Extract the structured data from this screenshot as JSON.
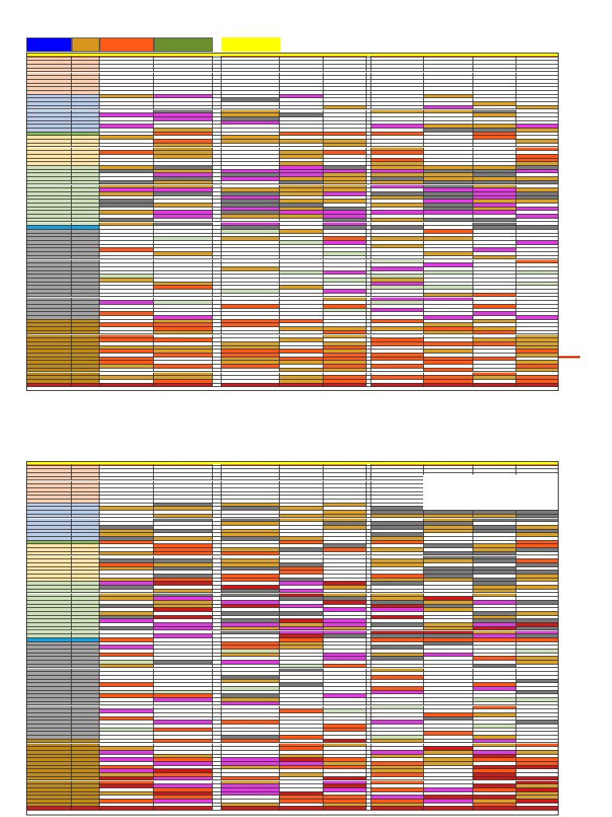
{
  "legend": {
    "swatches": [
      {
        "color": "#0000ff"
      },
      {
        "color": "#d9961f"
      },
      {
        "color": "#ff5a1a"
      },
      {
        "color": "#6b8e2f"
      },
      {
        "color": "#ffff00"
      }
    ]
  },
  "colors": {
    "peach": "#fbcfb2",
    "blue": "#b9cbe6",
    "green_head": "#8ab95a",
    "yellow": "#fde5a5",
    "lightgreen": "#cde0b8",
    "cyan": "#19a0dc",
    "gray": "#a3a3a3",
    "goldbrown": "#c08a19",
    "gold": "#d9a02a",
    "orange": "#ff5a1a",
    "red": "#cc1b1b",
    "magenta": "#e03cdf",
    "darkgray": "#7a7a7a",
    "header_orange": "#d7651e",
    "header_yellow": "#ffff00"
  },
  "sheet2": {
    "notes": [
      "",
      "",
      ""
    ]
  }
}
